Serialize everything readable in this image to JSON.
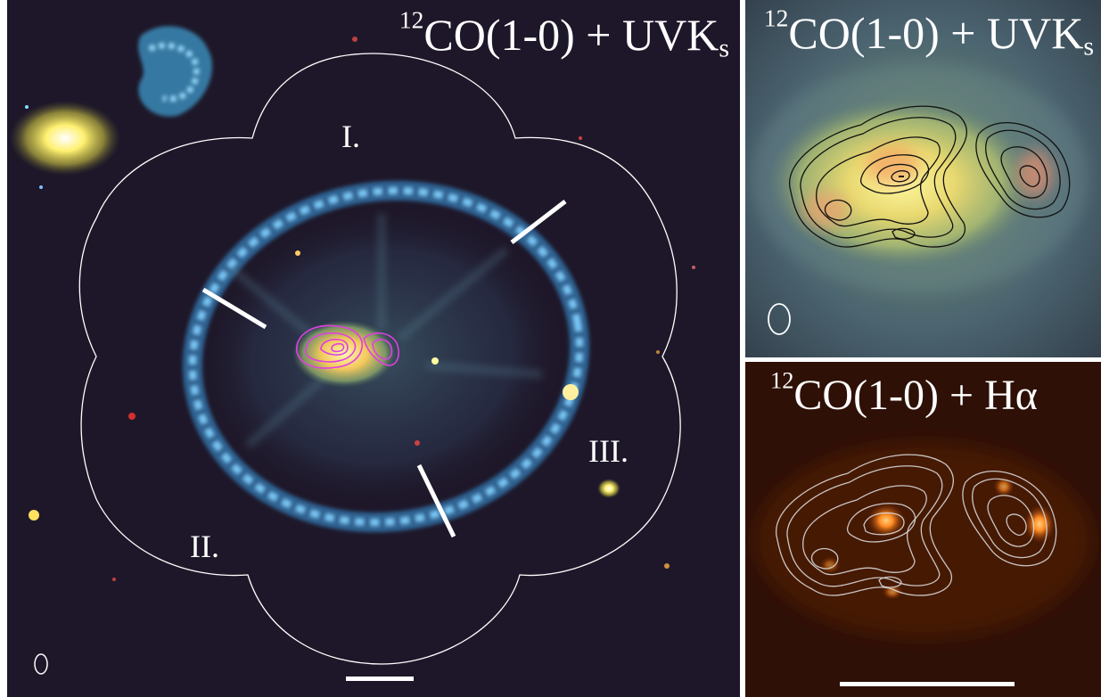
{
  "panels": {
    "main": {
      "label_iso": "12",
      "label_main": "CO(1-0) + UVK",
      "label_sub": "s",
      "regions": [
        "I.",
        "II.",
        "III."
      ]
    },
    "top_right": {
      "label_iso": "12",
      "label_main": "CO(1-0) + UVK",
      "label_sub": "s"
    },
    "bottom_right": {
      "label_iso": "12",
      "label_main": "CO(1-0) + Hα"
    }
  },
  "colors": {
    "ring": "#58b8ff",
    "contour_main": "#e040e0",
    "contour_top": "#111111",
    "contour_bottom": "#d8d8d8",
    "outline": "#ffffff"
  }
}
